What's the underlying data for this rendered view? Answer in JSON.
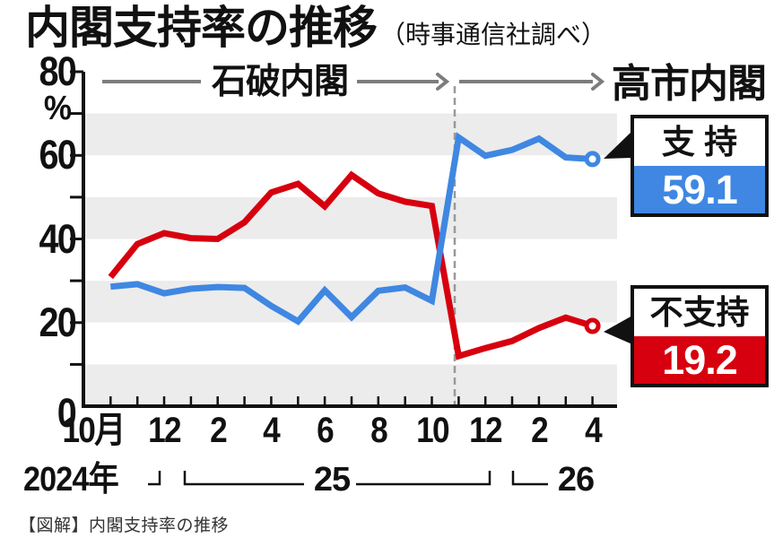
{
  "title": {
    "main": "内閣支持率の推移",
    "source": "（時事通信社調べ）"
  },
  "annotations": {
    "era_left": "石破内閣",
    "era_right": "高市内閣"
  },
  "y_axis": {
    "unit": "%",
    "labels": [
      "80",
      "60",
      "40",
      "20",
      "0"
    ]
  },
  "x_axis": {
    "tick_labels": [
      "10月",
      "12",
      "2",
      "4",
      "6",
      "8",
      "10",
      "12",
      "2",
      "4"
    ],
    "year_labels": [
      "2024年",
      "25",
      "26"
    ]
  },
  "legend": {
    "approve": {
      "label": "支 持",
      "value": "59.1",
      "color": "#3f87e2"
    },
    "disapprove": {
      "label": "不支持",
      "value": "19.2",
      "color": "#d7000f"
    }
  },
  "caption": "【図解】内閣支持率の推移",
  "chart_data": {
    "type": "line",
    "title": "内閣支持率の推移（時事通信社調べ）",
    "x": [
      "2024-10",
      "2024-11",
      "2024-12",
      "2025-01",
      "2025-02",
      "2025-03",
      "2025-04",
      "2025-05",
      "2025-06",
      "2025-07",
      "2025-08",
      "2025-09",
      "2025-10",
      "2025-11",
      "2025-12",
      "2026-01",
      "2026-02",
      "2026-03",
      "2026-04"
    ],
    "series": [
      {
        "name": "支持",
        "color": "#3f87e2",
        "values": [
          28.6,
          29.2,
          27.0,
          28.1,
          28.5,
          28.3,
          24.0,
          20.3,
          27.7,
          21.3,
          27.6,
          28.4,
          25.2,
          64.3,
          59.9,
          61.3,
          64.0,
          59.5,
          59.1
        ]
      },
      {
        "name": "不支持",
        "color": "#d7000f",
        "values": [
          30.9,
          38.8,
          41.4,
          40.2,
          40.0,
          44.0,
          51.1,
          53.2,
          47.8,
          55.3,
          50.9,
          48.9,
          47.9,
          12.0,
          13.9,
          15.6,
          18.7,
          21.2,
          19.2
        ]
      }
    ],
    "ylim": [
      0,
      80
    ],
    "y_ticks": [
      0,
      10,
      20,
      30,
      40,
      50,
      60,
      70,
      80
    ],
    "ylabel": "%",
    "grid": "alternating horizontal bands (gray 70-60, 50-40, 30-20, 10-0)",
    "band_color": "#ececec",
    "legend_position": "right callout boxes",
    "cabinet_transition_after": "2025-10",
    "final_values": {
      "支持": 59.1,
      "不支持": 19.2
    }
  }
}
